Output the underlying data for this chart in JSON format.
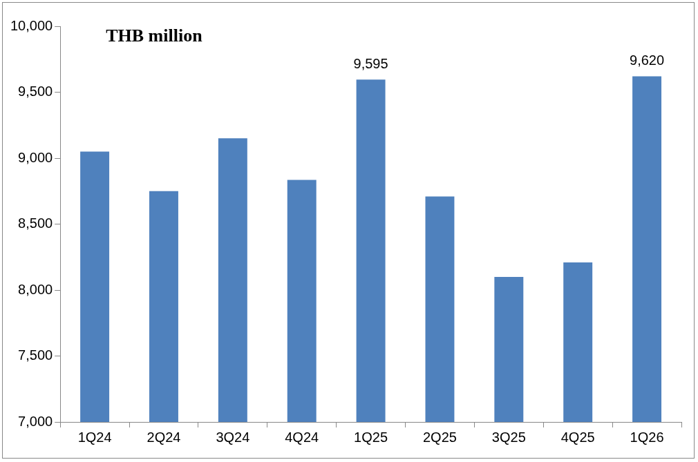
{
  "chart_data": {
    "type": "bar",
    "annotations": [
      "THB million"
    ],
    "categories": [
      "1Q24",
      "2Q24",
      "3Q24",
      "4Q24",
      "1Q25",
      "2Q25",
      "3Q25",
      "4Q25",
      "1Q26"
    ],
    "values": [
      9050,
      8750,
      9150,
      8835,
      9595,
      8710,
      8100,
      8210,
      9620
    ],
    "value_labels": [
      null,
      null,
      null,
      null,
      "9,595",
      null,
      null,
      null,
      "9,620"
    ],
    "color": "#4f81bd",
    "ylim": [
      7000,
      10000
    ],
    "yticks": [
      {
        "value": 7000,
        "label": "7,000"
      },
      {
        "value": 7500,
        "label": "7,500"
      },
      {
        "value": 8000,
        "label": "8,000"
      },
      {
        "value": 8500,
        "label": "8,500"
      },
      {
        "value": 9000,
        "label": "9,000"
      },
      {
        "value": 9500,
        "label": "9,500"
      },
      {
        "value": 10000,
        "label": "10,000"
      }
    ],
    "grid": false,
    "legend": false
  }
}
